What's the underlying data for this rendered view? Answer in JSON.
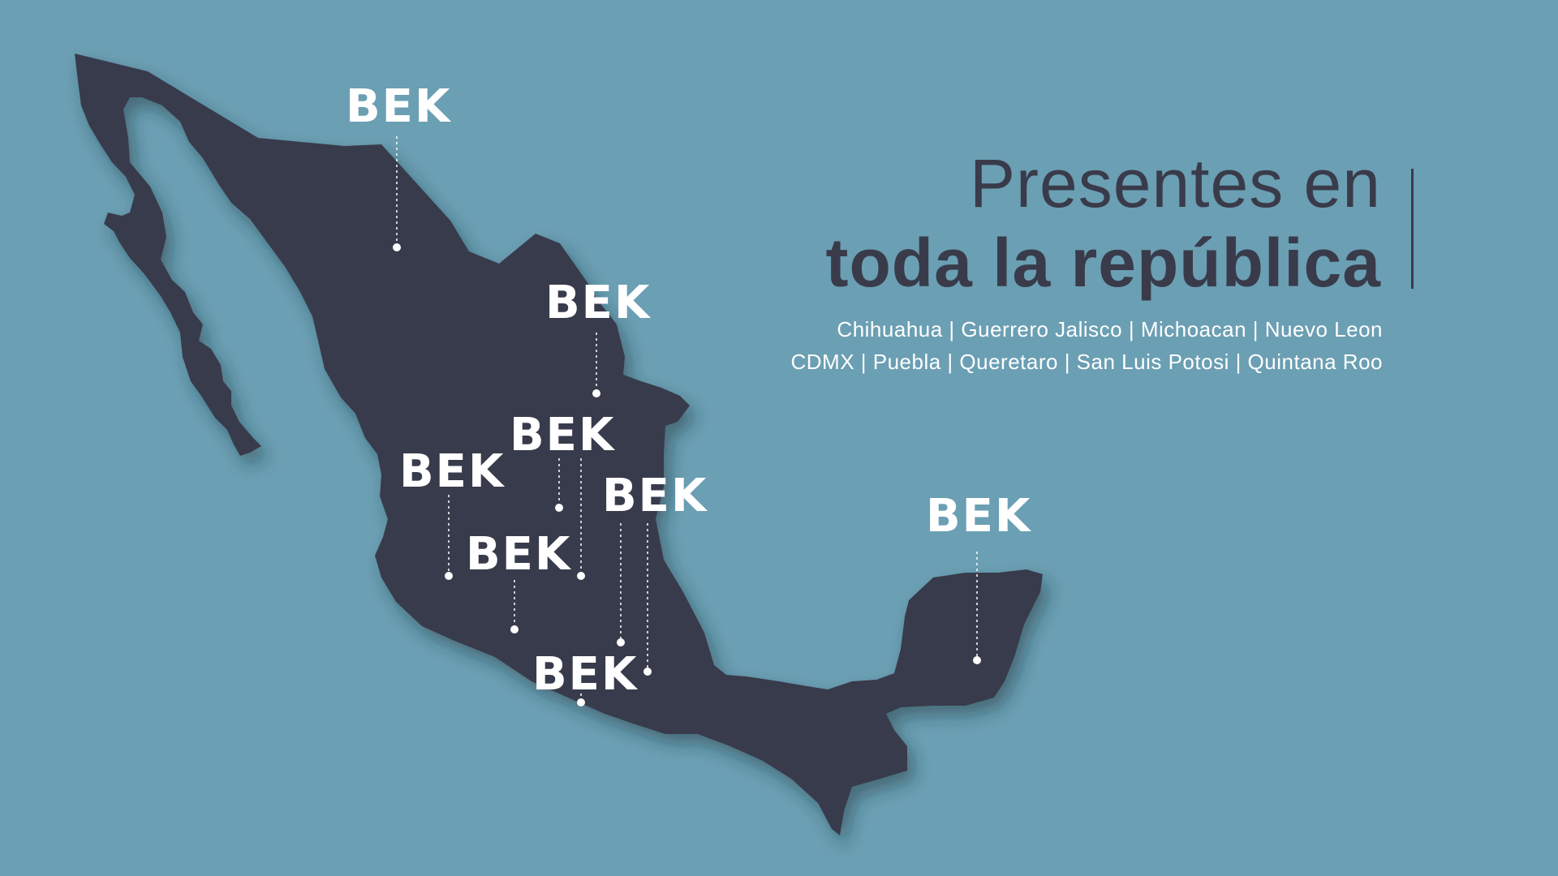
{
  "colors": {
    "background": "#6b9fb3",
    "map_fill": "#393b4b",
    "text_dark": "#393b4b",
    "text_light": "#ffffff"
  },
  "headline": {
    "line1": "Presentes en",
    "line2": "toda la república"
  },
  "regions": {
    "line1": "Chihuahua | Guerrero Jalisco | Michoacan | Nuevo Leon",
    "line2": "CDMX | Puebla | Queretaro | San Luis Potosi | Quintana Roo"
  },
  "brand": {
    "logo_text": "BEK"
  },
  "markers": [
    {
      "name": "chihuahua"
    },
    {
      "name": "nuevo-leon"
    },
    {
      "name": "central-north"
    },
    {
      "name": "jalisco"
    },
    {
      "name": "east-central"
    },
    {
      "name": "michoacan"
    },
    {
      "name": "guerrero"
    },
    {
      "name": "quintana-roo"
    }
  ],
  "map_icon": "mexico-map-silhouette"
}
